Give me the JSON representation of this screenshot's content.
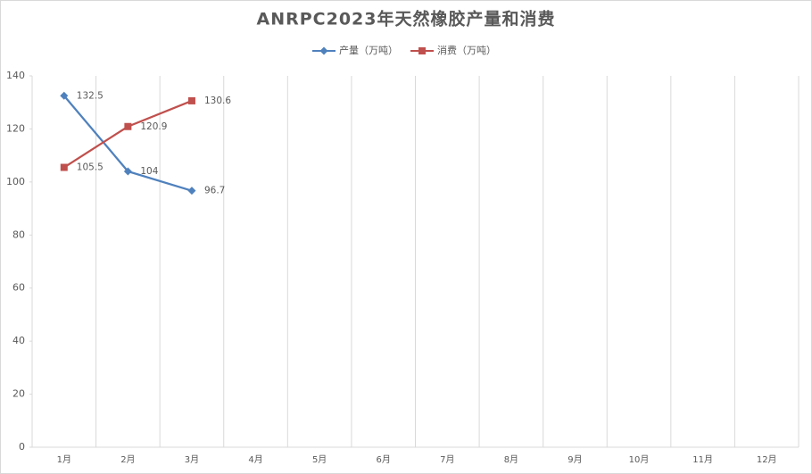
{
  "chart_data": {
    "type": "line",
    "title": "ANRPC2023年天然橡胶产量和消费",
    "categories": [
      "1月",
      "2月",
      "3月",
      "4月",
      "5月",
      "6月",
      "7月",
      "8月",
      "9月",
      "10月",
      "11月",
      "12月"
    ],
    "series": [
      {
        "name": "产量（万吨）",
        "color": "#4f81bd",
        "marker": "diamond",
        "values": [
          132.5,
          104,
          96.7,
          null,
          null,
          null,
          null,
          null,
          null,
          null,
          null,
          null
        ]
      },
      {
        "name": "消费（万吨）",
        "color": "#c0504d",
        "marker": "square",
        "values": [
          105.5,
          120.9,
          130.6,
          null,
          null,
          null,
          null,
          null,
          null,
          null,
          null,
          null
        ]
      }
    ],
    "ylim": [
      0,
      140
    ],
    "yticks": [
      0,
      20,
      40,
      60,
      80,
      100,
      120,
      140
    ],
    "grid": "x",
    "legend": "top"
  }
}
